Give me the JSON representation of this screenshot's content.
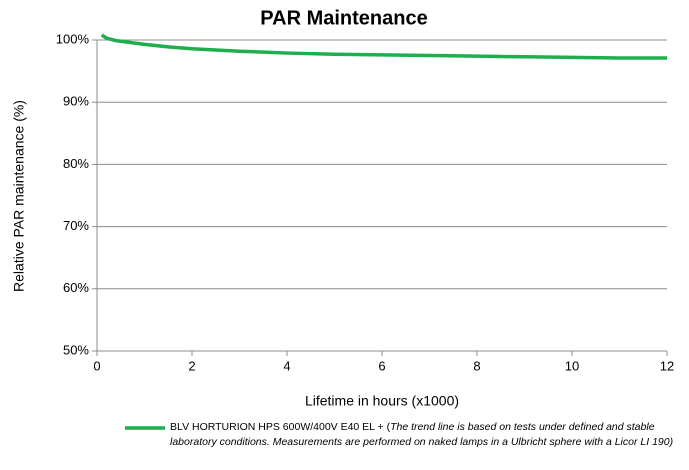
{
  "chart_data": {
    "type": "line",
    "title": "PAR Maintenance",
    "x_label": "Lifetime in hours (x1000)",
    "y_label": "Relative PAR maintenance (%)",
    "x": [
      0.1,
      0.2,
      0.4,
      0.7,
      1,
      1.5,
      2,
      3,
      4,
      5,
      6,
      7,
      8,
      9,
      10,
      11,
      12
    ],
    "series": [
      {
        "name": "BLV HORTURION HPS 600W/400V E40 EL + (",
        "color": "#1eae4e",
        "values": [
          100.8,
          100.3,
          99.9,
          99.6,
          99.3,
          98.9,
          98.6,
          98.2,
          97.9,
          97.7,
          97.6,
          97.5,
          97.4,
          97.3,
          97.2,
          97.1,
          97.1
        ]
      }
    ],
    "legend_note": "The trend line is based on tests under defined and stable laboratory conditions. Measurements are performed on naked lamps in a Ulbricht sphere with a Licor LI 190)",
    "xlim": [
      0,
      12
    ],
    "xticks": [
      0,
      2,
      4,
      6,
      8,
      10,
      12
    ],
    "ylim": [
      50,
      100
    ],
    "yticks": [
      {
        "value": 50,
        "label": "50%"
      },
      {
        "value": 60,
        "label": "60%"
      },
      {
        "value": 70,
        "label": "70%"
      },
      {
        "value": 80,
        "label": "80%"
      },
      {
        "value": 90,
        "label": "90%"
      },
      {
        "value": 100,
        "label": "100%"
      }
    ],
    "grid": true,
    "legend": "bottom"
  }
}
